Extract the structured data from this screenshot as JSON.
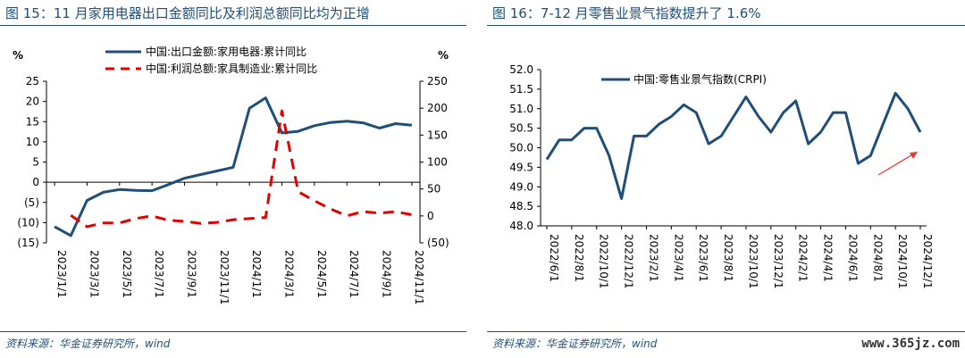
{
  "left_panel": {
    "title": "图 15：11 月家用电器出口金额同比及利润总额同比均为正增",
    "source": "资料来源：华金证券研究所，wind"
  },
  "right_panel": {
    "title": "图 16：7-12 月零售业景气指数提升了 1.6%",
    "source": "资料来源：华金证券研究所，wind",
    "watermark": "www.365jz.com"
  },
  "chart_data": [
    {
      "type": "line",
      "title": "",
      "ylabel_left": "%",
      "ylabel_right": "%",
      "ylim_left": [
        -15,
        25
      ],
      "yticks_left": [
        "25",
        "20",
        "15",
        "10",
        "5",
        "0",
        "(5)",
        "(10)",
        "(15)"
      ],
      "ylim_right": [
        -50,
        250
      ],
      "yticks_right": [
        "250",
        "200",
        "150",
        "100",
        "50",
        "0",
        "(50)"
      ],
      "x_tick_labels": [
        "2023/1/1",
        "2023/3/1",
        "2023/5/1",
        "2023/7/1",
        "2023/9/1",
        "2023/11/1",
        "2024/1/1",
        "2024/3/1",
        "2024/5/1",
        "2024/7/1",
        "2024/9/1",
        "2024/11/1"
      ],
      "legend_position": "top",
      "grid": false,
      "series": [
        {
          "name": "中国:出口金额:家用电器:累计同比",
          "axis": "left",
          "color": "#1f4e79",
          "style": "solid",
          "x": [
            "2023/1",
            "2023/2",
            "2023/3",
            "2023/4",
            "2023/5",
            "2023/6",
            "2023/7",
            "2023/8",
            "2023/9",
            "2023/10",
            "2023/11",
            "2023/12",
            "2024/1",
            "2024/2",
            "2024/3",
            "2024/4",
            "2024/5",
            "2024/6",
            "2024/7",
            "2024/8",
            "2024/9",
            "2024/10",
            "2024/11"
          ],
          "values": [
            -11,
            -13.2,
            -4.5,
            -2.5,
            -1.8,
            -2.0,
            -2.1,
            -0.6,
            1.0,
            1.9,
            2.8,
            3.7,
            18.3,
            20.9,
            12.2,
            12.6,
            14.0,
            14.8,
            15.1,
            14.7,
            13.4,
            14.5,
            14.1
          ]
        },
        {
          "name": "中国:利润总额:家具制造业:累计同比",
          "axis": "right",
          "color": "#e00000",
          "style": "dashed",
          "x": [
            "2023/2",
            "2023/3",
            "2023/4",
            "2023/5",
            "2023/6",
            "2023/7",
            "2023/8",
            "2023/9",
            "2023/10",
            "2023/11",
            "2023/12",
            "2024/2",
            "2024/3",
            "2024/4",
            "2024/5",
            "2024/6",
            "2024/7",
            "2024/8",
            "2024/9",
            "2024/10",
            "2024/11"
          ],
          "values": [
            1,
            -20,
            -13,
            -13,
            -5,
            0,
            -8,
            -10,
            -14,
            -12,
            -7,
            -3,
            195,
            45,
            28,
            13,
            0,
            8,
            5,
            8,
            2
          ]
        }
      ]
    },
    {
      "type": "line",
      "title": "",
      "ylim": [
        48.0,
        52.0
      ],
      "yticks": [
        "52.0",
        "51.5",
        "51.0",
        "50.5",
        "50.0",
        "49.5",
        "49.0",
        "48.5",
        "48.0"
      ],
      "x_tick_labels": [
        "2022/6/1",
        "2022/8/1",
        "2022/10/1",
        "2022/12/1",
        "2023/2/1",
        "2023/4/1",
        "2023/6/1",
        "2023/8/1",
        "2023/10/1",
        "2023/12/1",
        "2024/2/1",
        "2024/4/1",
        "2024/6/1",
        "2024/8/1",
        "2024/10/1",
        "2024/12/1"
      ],
      "legend_position": "top-left",
      "grid": false,
      "annotation": "red arrow pointing up-right near the end of the series",
      "series": [
        {
          "name": "中国:零售业景气指数(CRPI)",
          "color": "#1f4e79",
          "x": [
            "2022/6",
            "2022/7",
            "2022/8",
            "2022/9",
            "2022/10",
            "2022/11",
            "2022/12",
            "2023/1",
            "2023/2",
            "2023/3",
            "2023/4",
            "2023/5",
            "2023/6",
            "2023/7",
            "2023/8",
            "2023/9",
            "2023/10",
            "2023/11",
            "2023/12",
            "2024/1",
            "2024/2",
            "2024/3",
            "2024/4",
            "2024/5",
            "2024/6",
            "2024/7",
            "2024/8",
            "2024/9",
            "2024/10",
            "2024/11",
            "2024/12"
          ],
          "values": [
            49.7,
            50.2,
            50.2,
            50.5,
            50.5,
            49.8,
            48.7,
            50.3,
            50.3,
            50.6,
            50.8,
            51.1,
            50.9,
            50.1,
            50.3,
            50.8,
            51.3,
            50.8,
            50.4,
            50.9,
            51.2,
            50.1,
            50.4,
            50.9,
            50.9,
            49.6,
            49.8,
            50.6,
            51.4,
            51.0,
            50.4
          ]
        }
      ]
    }
  ]
}
